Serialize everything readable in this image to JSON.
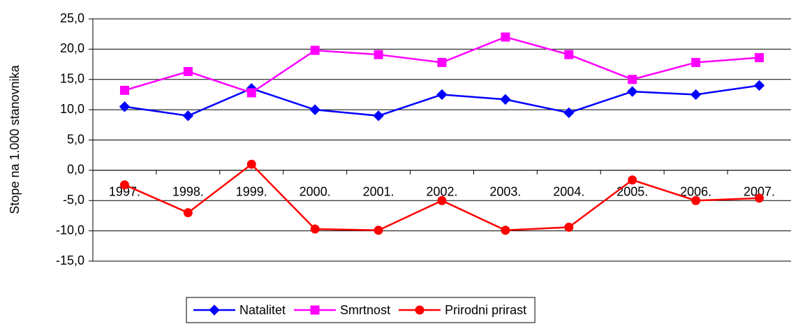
{
  "chart_data": {
    "type": "line",
    "y_label": "Stope na 1.000 stanovnika",
    "categories": [
      "1997.",
      "1998.",
      "1999.",
      "2000.",
      "2001.",
      "2002.",
      "2003.",
      "2004.",
      "2005.",
      "2006.",
      "2007."
    ],
    "series": [
      {
        "name": "Natalitet",
        "color": "#0000ff",
        "marker": "diamond",
        "values": [
          10.5,
          9.0,
          13.5,
          10.0,
          9.0,
          12.5,
          11.7,
          9.5,
          13.0,
          12.5,
          14.0
        ]
      },
      {
        "name": "Smrtnost",
        "color": "#ff00ff",
        "marker": "square",
        "values": [
          13.2,
          16.3,
          12.8,
          19.8,
          19.1,
          17.8,
          22.0,
          19.1,
          15.0,
          17.8,
          18.6
        ]
      },
      {
        "name": "Prirodni prirast",
        "color": "#ff0000",
        "marker": "circle",
        "values": [
          -2.4,
          -7.0,
          1.0,
          -9.7,
          -9.9,
          -5.0,
          -9.9,
          -9.4,
          -1.6,
          -5.0,
          -4.6
        ]
      }
    ],
    "ylim": [
      -15,
      25
    ],
    "yticks": [
      {
        "value": -15,
        "label": "-15,0"
      },
      {
        "value": -10,
        "label": "-10,0"
      },
      {
        "value": -5,
        "label": "-5,0"
      },
      {
        "value": 0,
        "label": "0,0"
      },
      {
        "value": 5,
        "label": "5,0"
      },
      {
        "value": 10,
        "label": "10,0"
      },
      {
        "value": 15,
        "label": "15,0"
      },
      {
        "value": 20,
        "label": "20,0"
      },
      {
        "value": 25,
        "label": "25,0"
      }
    ],
    "grid": true,
    "legend": "bottom"
  }
}
